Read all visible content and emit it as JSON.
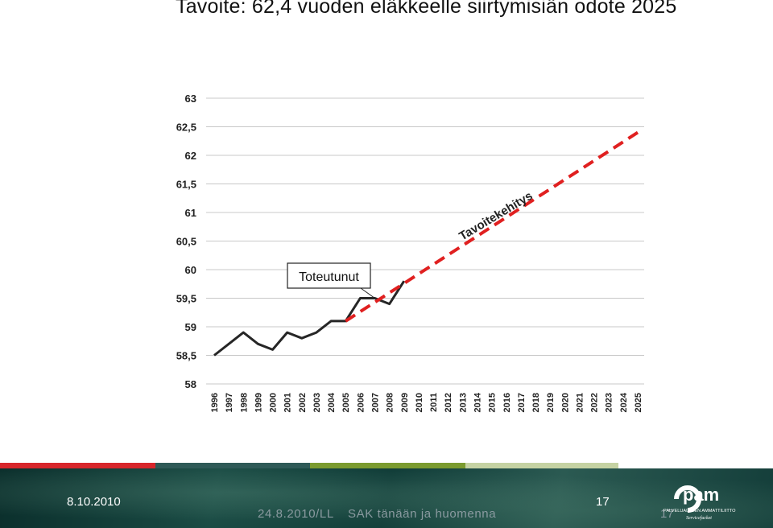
{
  "title": "Tavoite: 62,4 vuoden eläkkeelle siirtymisiän odote 2025",
  "chart_data": {
    "type": "line",
    "categories": [
      "1996",
      "1997",
      "1998",
      "1999",
      "2000",
      "2001",
      "2002",
      "2003",
      "2004",
      "2005",
      "2006",
      "2007",
      "2008",
      "2009",
      "2010",
      "2011",
      "2012",
      "2013",
      "2014",
      "2015",
      "2016",
      "2017",
      "2018",
      "2019",
      "2020",
      "2021",
      "2022",
      "2023",
      "2024",
      "2025"
    ],
    "yticks": [
      "58",
      "58,5",
      "59",
      "59,5",
      "60",
      "60,5",
      "61",
      "61,5",
      "62",
      "62,5",
      "63"
    ],
    "ylim": [
      58,
      63
    ],
    "grid": true,
    "series": [
      {
        "name": "Toteutunut",
        "color": "#262626",
        "style": "solid",
        "x": [
          "1996",
          "1997",
          "1998",
          "1999",
          "2000",
          "2001",
          "2002",
          "2003",
          "2004",
          "2005",
          "2006",
          "2007",
          "2008",
          "2009"
        ],
        "values": [
          58.5,
          58.7,
          58.9,
          58.7,
          58.6,
          58.9,
          58.8,
          58.9,
          59.1,
          59.1,
          59.5,
          59.5,
          59.4,
          59.8
        ]
      },
      {
        "name": "Tavoitekehitys",
        "color": "#e02020",
        "style": "dashed",
        "x": [
          "2005",
          "2025"
        ],
        "values": [
          59.1,
          62.4
        ]
      }
    ],
    "annotations": [
      "Toteutunut",
      "Tavoitekehitys"
    ]
  },
  "footer": {
    "date": "8.10.2010",
    "page": "17",
    "sub_date": "24.8.2010/LL",
    "sub_title": "SAK tänään ja huomenna",
    "sub_page": "17",
    "logo_text": "pam",
    "logo_sub": "PALVELUALOJEN AMMATTILIITTO",
    "logo_sub2": "Servicefacket"
  },
  "stripe_colors": [
    "#d7262b",
    "#2f5a57",
    "#7b9b2f",
    "#c5d2a3"
  ]
}
